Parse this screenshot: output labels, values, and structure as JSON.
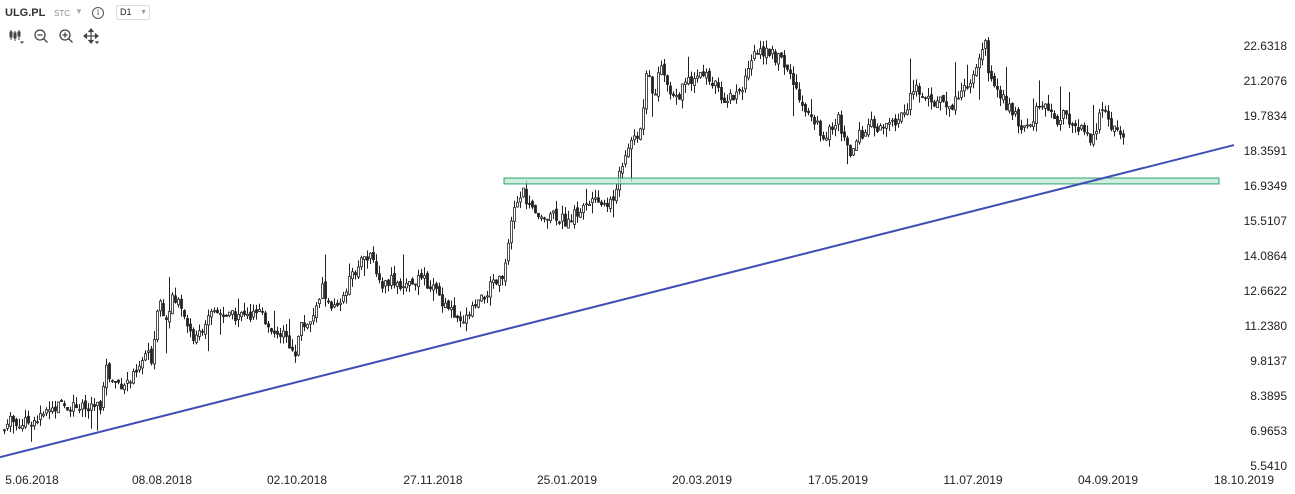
{
  "header": {
    "symbol": "ULG.PL",
    "exchange": "STC",
    "interval": "D1"
  },
  "toolbar": {
    "icons": [
      "candles-icon",
      "zoom-out-icon",
      "zoom-in-icon",
      "move-icon"
    ]
  },
  "colors": {
    "candle": "#222222",
    "trendline": "#3f4fb5",
    "zone_fill": "#bfe8d2",
    "zone_stroke": "#2fa36e"
  },
  "chart_data": {
    "type": "candlestick",
    "y_ticks": [
      "22.6318",
      "21.2076",
      "19.7834",
      "18.3591",
      "16.9349",
      "15.5107",
      "14.0864",
      "12.6622",
      "11.2380",
      "9.8137",
      "8.3895",
      "6.9653",
      "5.5410"
    ],
    "x_ticks": [
      "5.06.2018",
      "08.08.2018",
      "02.10.2018",
      "27.11.2018",
      "25.01.2019",
      "20.03.2019",
      "17.05.2019",
      "11.07.2019",
      "04.09.2019",
      "18.10.2019"
    ],
    "ylim": [
      5.541,
      22.6318
    ],
    "close_path": [
      [
        0,
        6.4
      ],
      [
        8,
        7.6
      ],
      [
        15,
        7.2
      ],
      [
        25,
        7.3
      ],
      [
        40,
        7.5
      ],
      [
        50,
        7.9
      ],
      [
        60,
        8.0
      ],
      [
        75,
        8.0
      ],
      [
        90,
        7.8
      ],
      [
        100,
        8.0
      ],
      [
        105,
        9.7
      ],
      [
        110,
        9.0
      ],
      [
        120,
        8.9
      ],
      [
        130,
        9.0
      ],
      [
        138,
        9.4
      ],
      [
        145,
        10.1
      ],
      [
        152,
        9.9
      ],
      [
        158,
        12.5
      ],
      [
        165,
        11.6
      ],
      [
        172,
        12.3
      ],
      [
        180,
        12.2
      ],
      [
        188,
        11.2
      ],
      [
        195,
        10.6
      ],
      [
        203,
        11.3
      ],
      [
        210,
        11.6
      ],
      [
        220,
        11.8
      ],
      [
        230,
        11.6
      ],
      [
        240,
        11.7
      ],
      [
        250,
        11.6
      ],
      [
        258,
        11.8
      ],
      [
        265,
        11.4
      ],
      [
        272,
        11.2
      ],
      [
        280,
        11.0
      ],
      [
        288,
        10.6
      ],
      [
        295,
        10.2
      ],
      [
        300,
        11.2
      ],
      [
        308,
        11.4
      ],
      [
        316,
        11.9
      ],
      [
        322,
        12.8
      ],
      [
        330,
        11.9
      ],
      [
        338,
        12.1
      ],
      [
        345,
        12.7
      ],
      [
        352,
        13.3
      ],
      [
        360,
        13.9
      ],
      [
        368,
        14.1
      ],
      [
        375,
        13.6
      ],
      [
        382,
        12.9
      ],
      [
        390,
        13.2
      ],
      [
        398,
        13.0
      ],
      [
        405,
        12.8
      ],
      [
        412,
        13.1
      ],
      [
        420,
        13.1
      ],
      [
        428,
        13.0
      ],
      [
        435,
        12.7
      ],
      [
        442,
        12.3
      ],
      [
        450,
        12.0
      ],
      [
        456,
        11.4
      ],
      [
        462,
        11.2
      ],
      [
        468,
        11.7
      ],
      [
        475,
        12.0
      ],
      [
        482,
        12.3
      ],
      [
        490,
        12.8
      ],
      [
        497,
        13.0
      ],
      [
        503,
        13.2
      ],
      [
        508,
        14.5
      ],
      [
        513,
        15.8
      ],
      [
        518,
        16.4
      ],
      [
        523,
        16.7
      ],
      [
        528,
        16.2
      ],
      [
        533,
        15.9
      ],
      [
        538,
        15.5
      ],
      [
        545,
        15.8
      ],
      [
        552,
        15.9
      ],
      [
        560,
        15.6
      ],
      [
        568,
        15.5
      ],
      [
        575,
        15.8
      ],
      [
        582,
        16.0
      ],
      [
        590,
        16.3
      ],
      [
        598,
        16.2
      ],
      [
        606,
        16.3
      ],
      [
        613,
        16.2
      ],
      [
        618,
        17.3
      ],
      [
        624,
        18.2
      ],
      [
        630,
        18.9
      ],
      [
        636,
        19.0
      ],
      [
        642,
        19.4
      ],
      [
        647,
        21.8
      ],
      [
        653,
        20.6
      ],
      [
        660,
        21.7
      ],
      [
        668,
        21.0
      ],
      [
        675,
        20.5
      ],
      [
        683,
        20.9
      ],
      [
        690,
        21.3
      ],
      [
        697,
        21.4
      ],
      [
        704,
        21.5
      ],
      [
        711,
        21.2
      ],
      [
        718,
        20.8
      ],
      [
        725,
        20.5
      ],
      [
        732,
        20.6
      ],
      [
        740,
        20.9
      ],
      [
        748,
        21.5
      ],
      [
        755,
        22.3
      ],
      [
        762,
        22.5
      ],
      [
        770,
        22.3
      ],
      [
        778,
        22.1
      ],
      [
        786,
        21.8
      ],
      [
        794,
        21.0
      ],
      [
        800,
        20.6
      ],
      [
        806,
        20.0
      ],
      [
        812,
        19.6
      ],
      [
        818,
        19.3
      ],
      [
        825,
        19.0
      ],
      [
        832,
        19.2
      ],
      [
        838,
        19.7
      ],
      [
        845,
        18.8
      ],
      [
        852,
        18.1
      ],
      [
        858,
        18.9
      ],
      [
        865,
        19.3
      ],
      [
        872,
        19.4
      ],
      [
        880,
        19.2
      ],
      [
        888,
        19.4
      ],
      [
        896,
        19.6
      ],
      [
        904,
        19.9
      ],
      [
        910,
        20.6
      ],
      [
        916,
        20.9
      ],
      [
        922,
        20.5
      ],
      [
        930,
        20.3
      ],
      [
        938,
        20.4
      ],
      [
        945,
        20.1
      ],
      [
        952,
        20.3
      ],
      [
        958,
        20.7
      ],
      [
        965,
        21.0
      ],
      [
        972,
        21.5
      ],
      [
        978,
        22.1
      ],
      [
        984,
        22.9
      ],
      [
        990,
        21.2
      ],
      [
        996,
        20.9
      ],
      [
        1003,
        20.4
      ],
      [
        1010,
        20.1
      ],
      [
        1016,
        19.7
      ],
      [
        1022,
        19.3
      ],
      [
        1028,
        19.5
      ],
      [
        1034,
        19.8
      ],
      [
        1040,
        20.2
      ],
      [
        1046,
        20.2
      ],
      [
        1052,
        19.9
      ],
      [
        1058,
        19.6
      ],
      [
        1064,
        19.8
      ],
      [
        1070,
        19.5
      ],
      [
        1076,
        19.3
      ],
      [
        1082,
        19.2
      ],
      [
        1088,
        18.8
      ],
      [
        1094,
        19.0
      ],
      [
        1100,
        20.1
      ],
      [
        1106,
        19.7
      ],
      [
        1112,
        19.4
      ],
      [
        1118,
        19.1
      ],
      [
        1124,
        19.0
      ]
    ],
    "trendline": [
      [
        5.06,
        5.9
      ],
      [
        18.1,
        18.6
      ]
    ],
    "support_zone": [
      17.02,
      17.26
    ]
  }
}
